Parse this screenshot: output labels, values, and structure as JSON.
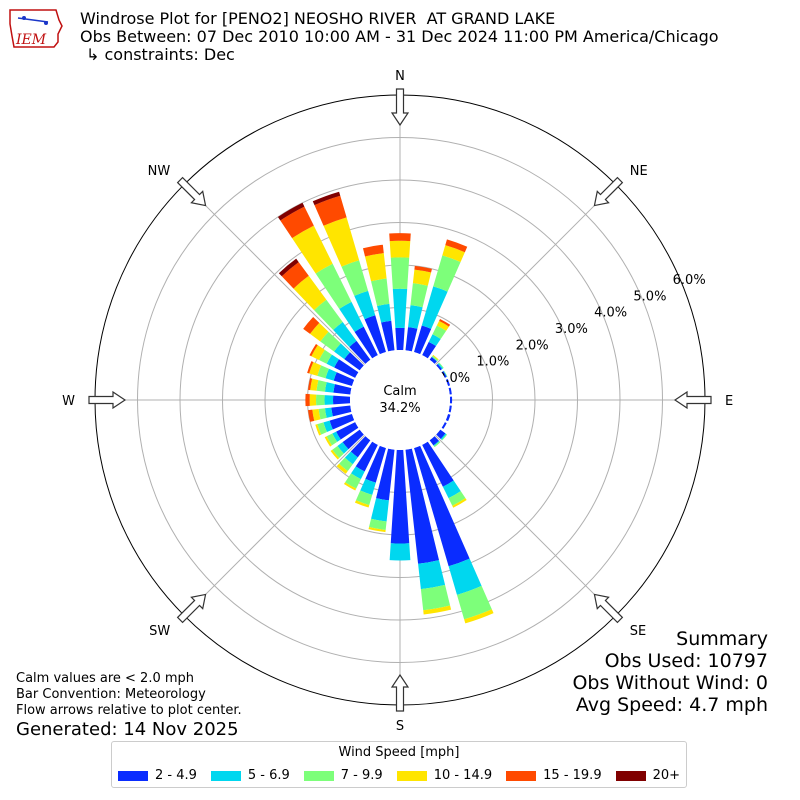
{
  "logo": {
    "text": "IEM",
    "icon": "iowa-state-outline-icon"
  },
  "header": {
    "title": "Windrose Plot for [PENO2] NEOSHO RIVER  AT GRAND LAKE",
    "subtitle": "Obs Between: 07 Dec 2010 10:00 AM - 31 Dec 2024 11:00 PM America/Chicago",
    "constraints": "↳ constraints: Dec"
  },
  "summary": {
    "title": "Summary",
    "obs_used": "Obs Used: 10797",
    "obs_without_wind": "Obs Without Wind: 0",
    "avg_speed": "Avg Speed: 4.7 mph"
  },
  "notes": {
    "calm_note": "Calm values are < 2.0 mph",
    "bar_convention": "Bar Convention: Meteorology",
    "flow_arrows": "Flow arrows relative to plot center.",
    "generated": "Generated: 14 Nov 2025"
  },
  "chart_data": {
    "type": "windrose",
    "calm_label": "Calm",
    "calm_value": "34.2%",
    "calm_percent": 34.2,
    "radial_max": 6.0,
    "radial_ticks": [
      "0.0%",
      "1.0%",
      "2.0%",
      "3.0%",
      "4.0%",
      "5.0%",
      "6.0%"
    ],
    "direction_labels": [
      "N",
      "NE",
      "E",
      "SE",
      "S",
      "SW",
      "W",
      "NW"
    ],
    "legend_title": "Wind Speed [mph]",
    "speed_bins": [
      "2 - 4.9",
      "5 - 6.9",
      "7 - 9.9",
      "10 - 14.9",
      "15 - 19.9",
      "20+"
    ],
    "colors": [
      "#0a2cff",
      "#00d7ef",
      "#7dff7a",
      "#ffe500",
      "#ff4a00",
      "#800000"
    ],
    "directions_deg": [
      0,
      10,
      20,
      30,
      40,
      50,
      60,
      70,
      80,
      90,
      100,
      110,
      120,
      130,
      140,
      150,
      160,
      170,
      180,
      190,
      200,
      210,
      220,
      230,
      240,
      250,
      260,
      270,
      280,
      290,
      300,
      310,
      320,
      330,
      340,
      350
    ],
    "cumulative_percent": [
      [
        0.52,
        1.44,
        2.18,
        2.57,
        2.75,
        2.75
      ],
      [
        0.55,
        1.07,
        1.59,
        1.91,
        2.0,
        2.0
      ],
      [
        0.65,
        1.61,
        2.37,
        2.62,
        2.76,
        2.76
      ],
      [
        0.35,
        0.55,
        0.78,
        0.9,
        0.95,
        0.95
      ],
      [
        0.08,
        0.09,
        0.12,
        0.14,
        0.14,
        0.14
      ],
      [
        0.05,
        0.08,
        0.1,
        0.1,
        0.1,
        0.1
      ],
      [
        0.05,
        0.06,
        0.07,
        0.07,
        0.07,
        0.07
      ],
      [
        0.05,
        0.05,
        0.05,
        0.05,
        0.05,
        0.05
      ],
      [
        0.05,
        0.05,
        0.05,
        0.05,
        0.05,
        0.05
      ],
      [
        0.05,
        0.05,
        0.05,
        0.05,
        0.05,
        0.05
      ],
      [
        0.05,
        0.05,
        0.05,
        0.05,
        0.05,
        0.05
      ],
      [
        0.06,
        0.06,
        0.06,
        0.06,
        0.06,
        0.06
      ],
      [
        0.05,
        0.05,
        0.05,
        0.05,
        0.05,
        0.05
      ],
      [
        0.15,
        0.18,
        0.2,
        0.2,
        0.2,
        0.2
      ],
      [
        0.15,
        0.17,
        0.2,
        0.2,
        0.2,
        0.2
      ],
      [
        1.1,
        1.4,
        1.6,
        1.65,
        1.65,
        1.65
      ],
      [
        2.9,
        3.6,
        4.2,
        4.3,
        4.3,
        4.3
      ],
      [
        2.7,
        3.3,
        3.8,
        3.9,
        3.9,
        3.9
      ],
      [
        2.2,
        2.6,
        2.6,
        2.6,
        2.6,
        2.6
      ],
      [
        1.2,
        1.7,
        1.9,
        1.95,
        1.95,
        1.95
      ],
      [
        0.85,
        1.15,
        1.4,
        1.46,
        1.46,
        1.46
      ],
      [
        0.7,
        0.9,
        1.15,
        1.2,
        1.2,
        1.2
      ],
      [
        0.5,
        0.7,
        0.9,
        0.98,
        0.98,
        0.98
      ],
      [
        0.5,
        0.65,
        0.8,
        0.85,
        0.85,
        0.85
      ],
      [
        0.5,
        0.6,
        0.75,
        0.8,
        0.8,
        0.8
      ],
      [
        0.55,
        0.7,
        0.85,
        0.9,
        0.9,
        0.9
      ],
      [
        0.45,
        0.6,
        0.75,
        0.9,
        1.0,
        1.0
      ],
      [
        0.4,
        0.6,
        0.8,
        0.95,
        1.05,
        1.05
      ],
      [
        0.4,
        0.6,
        0.8,
        0.95,
        1.0,
        1.0
      ],
      [
        0.45,
        0.65,
        0.85,
        1.05,
        1.1,
        1.1
      ],
      [
        0.55,
        0.75,
        0.95,
        1.15,
        1.2,
        1.2
      ],
      [
        0.45,
        0.75,
        1.15,
        1.45,
        1.65,
        1.65
      ],
      [
        0.55,
        1.1,
        1.75,
        2.45,
        2.85,
        2.95
      ],
      [
        0.75,
        1.4,
        2.4,
        3.4,
        3.9,
        4.0
      ],
      [
        0.9,
        1.5,
        2.25,
        3.3,
        3.83,
        3.93
      ],
      [
        0.7,
        1.1,
        1.7,
        2.3,
        2.5,
        2.5
      ]
    ]
  }
}
